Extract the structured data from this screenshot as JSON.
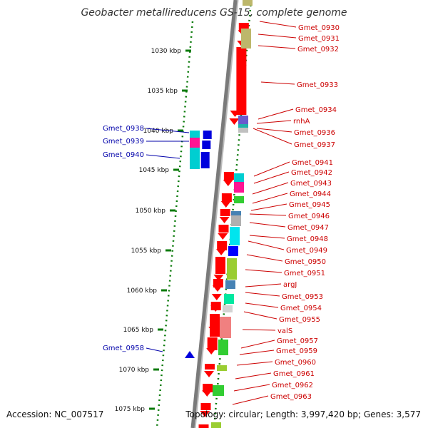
{
  "title": "Geobacter metallireducens GS-15, complete genome",
  "footer": {
    "accession": "Accession: NC_007517",
    "topology": "Topology: circular; Length: 3,997,420 bp; Genes: 3,577"
  },
  "colors": {
    "backbone": "#7a7a7a",
    "ruler": "#0a7a0a",
    "forward_gene": "#ff0000",
    "reverse_gene": "#0000dd",
    "right_label": "#cc0000",
    "left_label": "#0000aa"
  },
  "ruler_ticks": [
    {
      "label": "1030 kbp",
      "kbp": 1030
    },
    {
      "label": "1035 kbp",
      "kbp": 1035
    },
    {
      "label": "1040 kbp",
      "kbp": 1040
    },
    {
      "label": "1045 kbp",
      "kbp": 1045
    },
    {
      "label": "1050 kbp",
      "kbp": 1050
    },
    {
      "label": "1055 kbp",
      "kbp": 1055
    },
    {
      "label": "1060 kbp",
      "kbp": 1060
    },
    {
      "label": "1065 kbp",
      "kbp": 1065
    },
    {
      "label": "1070 kbp",
      "kbp": 1070
    },
    {
      "label": "1075 kbp",
      "kbp": 1075
    }
  ],
  "right_labels": [
    "Gmet_0930",
    "Gmet_0931",
    "Gmet_0932",
    "Gmet_0933",
    "Gmet_0934",
    "rnhA",
    "Gmet_0936",
    "Gmet_0937",
    "Gmet_0941",
    "Gmet_0942",
    "Gmet_0943",
    "Gmet_0944",
    "Gmet_0945",
    "Gmet_0946",
    "Gmet_0947",
    "Gmet_0948",
    "Gmet_0949",
    "Gmet_0950",
    "Gmet_0951",
    "argJ",
    "Gmet_0953",
    "Gmet_0954",
    "Gmet_0955",
    "valS",
    "Gmet_0957",
    "Gmet_0959",
    "Gmet_0960",
    "Gmet_0961",
    "Gmet_0962",
    "Gmet_0963"
  ],
  "left_labels": [
    "Gmet_0938",
    "Gmet_0939",
    "Gmet_0940",
    "Gmet_0958"
  ]
}
